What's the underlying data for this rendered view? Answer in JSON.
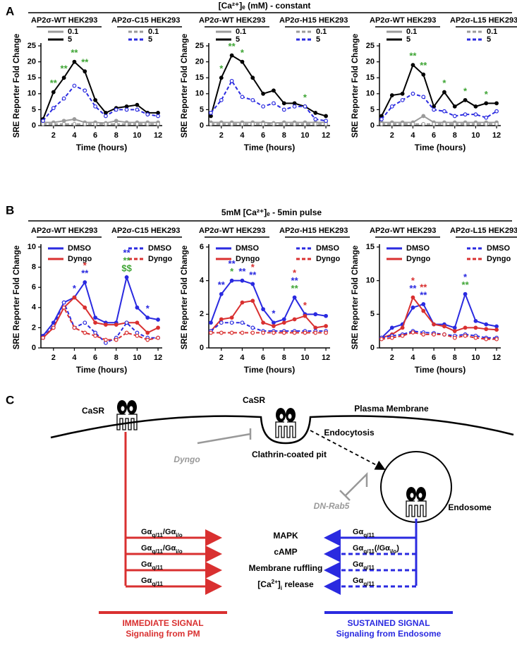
{
  "figure": {
    "panel_labels": [
      "A",
      "B",
      "C"
    ],
    "titles": [
      "[Ca²⁺]ₑ (mM) - constant",
      "5mM [Ca²⁺]ₑ - 5min pulse"
    ]
  },
  "chart_data": [
    {
      "type": "line",
      "xlabel": "Time (hours)",
      "ylabel": "SRE Reporter Fold Change",
      "groups": [
        "AP2σ-WT HEK293",
        "AP2σ-C15 HEK293"
      ],
      "x": [
        1,
        2,
        3,
        4,
        5,
        6,
        7,
        8,
        9,
        10,
        11,
        12
      ],
      "xlim": [
        0.8,
        12.4
      ],
      "xticks": [
        2,
        4,
        6,
        8,
        10,
        12
      ],
      "ylim": [
        0,
        25
      ],
      "yticks": [
        0,
        5,
        10,
        15,
        20,
        25
      ],
      "series": [
        {
          "name": "0.1",
          "group": 0,
          "color": "#9a9a9a",
          "dashed": false,
          "values": [
            1,
            1,
            1.5,
            2,
            1,
            1,
            0.8,
            1.5,
            1,
            1,
            1,
            1
          ]
        },
        {
          "name": "5",
          "group": 0,
          "color": "#000000",
          "dashed": false,
          "values": [
            2,
            10.5,
            15,
            20,
            17,
            8,
            4,
            5.5,
            6,
            6.5,
            4,
            4
          ]
        },
        {
          "name": "0.1",
          "group": 1,
          "color": "#9a9a9a",
          "dashed": true,
          "values": [
            0.5,
            0.5,
            0.5,
            0.5,
            0.5,
            0.5,
            0.5,
            0.5,
            0.5,
            0.5,
            0.5,
            0.5
          ]
        },
        {
          "name": "5",
          "group": 1,
          "color": "#2a2ae0",
          "dashed": true,
          "values": [
            1.5,
            5.5,
            8.5,
            12.5,
            11,
            6,
            3,
            5,
            5,
            5,
            3.5,
            3
          ]
        }
      ],
      "annotations": [
        {
          "x": 2,
          "text": "**",
          "color": "#3fa535"
        },
        {
          "x": 3,
          "text": "**",
          "color": "#3fa535"
        },
        {
          "x": 4,
          "text": "**",
          "color": "#3fa535"
        },
        {
          "x": 5,
          "text": "**",
          "color": "#3fa535"
        }
      ]
    },
    {
      "type": "line",
      "xlabel": "Time (hours)",
      "ylabel": "SRE Reporter Fold Change",
      "groups": [
        "AP2σ-WT HEK293",
        "AP2σ-H15 HEK293"
      ],
      "x": [
        1,
        2,
        3,
        4,
        5,
        6,
        7,
        8,
        9,
        10,
        11,
        12
      ],
      "xlim": [
        0.8,
        12.4
      ],
      "xticks": [
        2,
        4,
        6,
        8,
        10,
        12
      ],
      "ylim": [
        0,
        25
      ],
      "yticks": [
        0,
        5,
        10,
        15,
        20,
        25
      ],
      "series": [
        {
          "name": "0.1",
          "group": 0,
          "color": "#9a9a9a",
          "dashed": false,
          "values": [
            1,
            1,
            1,
            1,
            1,
            1,
            0.8,
            1,
            1,
            1,
            1,
            1
          ]
        },
        {
          "name": "5",
          "group": 0,
          "color": "#000000",
          "dashed": false,
          "values": [
            3,
            15,
            22,
            20,
            15,
            10,
            11,
            7,
            7,
            6,
            4,
            3
          ]
        },
        {
          "name": "0.1",
          "group": 1,
          "color": "#9a9a9a",
          "dashed": true,
          "values": [
            0.5,
            0.5,
            0.5,
            0.5,
            0.5,
            0.5,
            0.5,
            0.5,
            0.5,
            0.5,
            0.5,
            0.5
          ]
        },
        {
          "name": "5",
          "group": 1,
          "color": "#2a2ae0",
          "dashed": true,
          "values": [
            4,
            8,
            14,
            9,
            8,
            6,
            7,
            5,
            6,
            6,
            2,
            1.5
          ]
        }
      ],
      "annotations": [
        {
          "x": 2,
          "text": "*",
          "color": "#3fa535"
        },
        {
          "x": 3,
          "text": "**",
          "color": "#3fa535"
        },
        {
          "x": 4,
          "text": "*",
          "color": "#3fa535"
        },
        {
          "x": 10,
          "text": "*",
          "color": "#3fa535"
        }
      ]
    },
    {
      "type": "line",
      "xlabel": "Time (hours)",
      "ylabel": "SRE Reporter Fold Change",
      "groups": [
        "AP2σ-WT HEK293",
        "AP2σ-L15 HEK293"
      ],
      "x": [
        1,
        2,
        3,
        4,
        5,
        6,
        7,
        8,
        9,
        10,
        11,
        12
      ],
      "xlim": [
        0.8,
        12.4
      ],
      "xticks": [
        2,
        4,
        6,
        8,
        10,
        12
      ],
      "ylim": [
        0,
        25
      ],
      "yticks": [
        0,
        5,
        10,
        15,
        20,
        25
      ],
      "series": [
        {
          "name": "0.1",
          "group": 0,
          "color": "#9a9a9a",
          "dashed": false,
          "values": [
            1,
            1,
            1,
            1,
            3,
            1,
            1,
            1,
            1,
            1,
            1,
            1
          ]
        },
        {
          "name": "5",
          "group": 0,
          "color": "#000000",
          "dashed": false,
          "values": [
            3,
            9.5,
            10,
            19,
            16,
            6,
            10.5,
            6,
            8,
            6,
            7,
            7
          ]
        },
        {
          "name": "0.1",
          "group": 1,
          "color": "#9a9a9a",
          "dashed": true,
          "values": [
            0.5,
            0.5,
            0.5,
            0.5,
            0.5,
            0.5,
            0.5,
            0.5,
            0.5,
            0.5,
            0.5,
            0.5
          ]
        },
        {
          "name": "5",
          "group": 1,
          "color": "#2a2ae0",
          "dashed": true,
          "values": [
            2,
            6,
            8,
            10,
            9,
            5,
            4.5,
            3,
            3.5,
            3.5,
            2.5,
            4.5
          ]
        }
      ],
      "annotations": [
        {
          "x": 4,
          "text": "**",
          "color": "#3fa535"
        },
        {
          "x": 5,
          "text": "**",
          "color": "#3fa535"
        },
        {
          "x": 7,
          "text": "*",
          "color": "#3fa535"
        },
        {
          "x": 9,
          "text": "*",
          "color": "#3fa535"
        },
        {
          "x": 11,
          "text": "*",
          "color": "#3fa535"
        }
      ]
    },
    {
      "type": "line",
      "xlabel": "Time (hours)",
      "ylabel": "SRE Reporter Fold Change",
      "groups": [
        "AP2σ-WT HEK293",
        "AP2σ-C15 HEK293"
      ],
      "x": [
        1,
        2,
        3,
        4,
        5,
        6,
        7,
        8,
        9,
        10,
        11,
        12
      ],
      "xlim": [
        0.8,
        12.4
      ],
      "xticks": [
        2,
        4,
        6,
        8,
        10,
        12
      ],
      "ylim": [
        0,
        10
      ],
      "yticks": [
        0,
        2,
        4,
        6,
        8,
        10
      ],
      "series": [
        {
          "name": "DMSO",
          "group": 0,
          "color": "#2a2ae0",
          "dashed": false,
          "values": [
            1.2,
            2.5,
            4.5,
            5,
            6.5,
            3,
            2.5,
            2.5,
            7,
            4,
            3,
            2.8
          ]
        },
        {
          "name": "Dyngo",
          "group": 0,
          "color": "#d93030",
          "dashed": false,
          "values": [
            1,
            2,
            4,
            5,
            4,
            2.5,
            2.3,
            2.3,
            2.5,
            2.5,
            1.5,
            2
          ]
        },
        {
          "name": "DMSO",
          "group": 1,
          "color": "#2a2ae0",
          "dashed": true,
          "values": [
            1,
            2.2,
            4.5,
            2,
            2.5,
            1.5,
            0.5,
            1,
            2.5,
            1.5,
            1,
            1
          ]
        },
        {
          "name": "Dyngo",
          "group": 1,
          "color": "#d93030",
          "dashed": true,
          "values": [
            1,
            2,
            4,
            2,
            1.5,
            1.2,
            0.8,
            0.8,
            1.5,
            1.2,
            0.8,
            1
          ]
        }
      ],
      "annotations": [
        {
          "x": 4,
          "text": "*",
          "color": "#2a2ae0"
        },
        {
          "x": 5,
          "text": "**",
          "color": "#2a2ae0"
        },
        {
          "x": 5,
          "text": "*",
          "color": "#d93030"
        },
        {
          "x": 9,
          "text": "$$",
          "color": "#3fa535"
        },
        {
          "x": 9,
          "text": "**",
          "color": "#3fa535"
        },
        {
          "x": 9,
          "text": "**",
          "color": "#2a2ae0"
        },
        {
          "x": 11,
          "text": "*",
          "color": "#2a2ae0"
        }
      ]
    },
    {
      "type": "line",
      "xlabel": "Time (hours)",
      "ylabel": "SRE Reporter Fold Change",
      "groups": [
        "AP2σ-WT HEK293",
        "AP2σ-H15 HEK293"
      ],
      "x": [
        1,
        2,
        3,
        4,
        5,
        6,
        7,
        8,
        9,
        10,
        11,
        12
      ],
      "xlim": [
        0.8,
        12.4
      ],
      "xticks": [
        2,
        4,
        6,
        8,
        10,
        12
      ],
      "ylim": [
        0,
        6
      ],
      "yticks": [
        0,
        2,
        4,
        6
      ],
      "series": [
        {
          "name": "DMSO",
          "group": 0,
          "color": "#2a2ae0",
          "dashed": false,
          "values": [
            1.5,
            3.2,
            4,
            4,
            3.8,
            2.3,
            1.5,
            1.7,
            3,
            2,
            2,
            1.9
          ]
        },
        {
          "name": "Dyngo",
          "group": 0,
          "color": "#d93030",
          "dashed": false,
          "values": [
            1,
            1.7,
            1.8,
            2.7,
            2.8,
            1.5,
            1.3,
            1.5,
            1.7,
            1.9,
            1.2,
            1.3
          ]
        },
        {
          "name": "DMSO",
          "group": 1,
          "color": "#2a2ae0",
          "dashed": true,
          "values": [
            1,
            1.5,
            1.5,
            1.5,
            1.2,
            1,
            1,
            1,
            1,
            1,
            1,
            1
          ]
        },
        {
          "name": "Dyngo",
          "group": 1,
          "color": "#d93030",
          "dashed": true,
          "values": [
            0.9,
            0.9,
            0.9,
            0.9,
            0.9,
            0.9,
            0.9,
            0.9,
            0.9,
            0.9,
            0.9,
            0.9
          ]
        }
      ],
      "annotations": [
        {
          "x": 2,
          "text": "**",
          "color": "#2a2ae0"
        },
        {
          "x": 3,
          "text": "*",
          "color": "#3fa535"
        },
        {
          "x": 3,
          "text": "**",
          "color": "#2a2ae0"
        },
        {
          "x": 4,
          "text": "**",
          "color": "#2a2ae0"
        },
        {
          "x": 5,
          "text": "**",
          "color": "#2a2ae0"
        },
        {
          "x": 5,
          "text": "*",
          "color": "#d93030"
        },
        {
          "x": 7,
          "text": "*",
          "color": "#2a2ae0"
        },
        {
          "x": 9,
          "text": "**",
          "color": "#3fa535"
        },
        {
          "x": 9,
          "text": "**",
          "color": "#2a2ae0"
        },
        {
          "x": 9,
          "text": "*",
          "color": "#d93030"
        },
        {
          "x": 10,
          "text": "*",
          "color": "#d93030"
        }
      ]
    },
    {
      "type": "line",
      "xlabel": "Time (hours)",
      "ylabel": "SRE Reporter Fold Change",
      "groups": [
        "AP2σ-WT HEK293",
        "AP2σ-L15 HEK293"
      ],
      "x": [
        1,
        2,
        3,
        4,
        5,
        6,
        7,
        8,
        9,
        10,
        11,
        12
      ],
      "xlim": [
        0.8,
        12.4
      ],
      "xticks": [
        2,
        4,
        6,
        8,
        10,
        12
      ],
      "ylim": [
        0,
        15
      ],
      "yticks": [
        0,
        5,
        10,
        15
      ],
      "series": [
        {
          "name": "DMSO",
          "group": 0,
          "color": "#2a2ae0",
          "dashed": false,
          "values": [
            1.5,
            3,
            3.5,
            6,
            6.5,
            3.5,
            3.5,
            3,
            8,
            4,
            3.5,
            3.2
          ]
        },
        {
          "name": "Dyngo",
          "group": 0,
          "color": "#d93030",
          "dashed": false,
          "values": [
            1.5,
            2,
            3,
            7.5,
            5.5,
            3.5,
            3.2,
            2.5,
            3,
            3,
            2.8,
            2.7
          ]
        },
        {
          "name": "DMSO",
          "group": 1,
          "color": "#2a2ae0",
          "dashed": true,
          "values": [
            1.5,
            1.8,
            2,
            2.5,
            2.3,
            2.2,
            2,
            1.8,
            2,
            1.8,
            1.5,
            1.5
          ]
        },
        {
          "name": "Dyngo",
          "group": 1,
          "color": "#d93030",
          "dashed": true,
          "values": [
            1.3,
            1.5,
            1.8,
            2.3,
            2,
            2,
            2,
            1.5,
            1.8,
            1.5,
            1.3,
            1.3
          ]
        }
      ],
      "annotations": [
        {
          "x": 4,
          "text": "**",
          "color": "#2a2ae0"
        },
        {
          "x": 4,
          "text": "*",
          "color": "#d93030"
        },
        {
          "x": 5,
          "text": "**",
          "color": "#2a2ae0"
        },
        {
          "x": 5,
          "text": "**",
          "color": "#d93030"
        },
        {
          "x": 9,
          "text": "**",
          "color": "#3fa535"
        },
        {
          "x": 9,
          "text": "*",
          "color": "#2a2ae0"
        }
      ]
    }
  ],
  "diagram": {
    "receptors": [
      "CaSR",
      "CaSR"
    ],
    "membrane": "Plasma Membrane",
    "endocytosis": "Endocytosis",
    "inhibitor_pit": "Dyngo",
    "pit": "Clathrin-coated pit",
    "inhibitor_endosome": "DN-Rab5",
    "endosome": "Endosome",
    "readouts": [
      [
        {
          "t": "MAPK"
        }
      ],
      [
        {
          "t": "cAMP"
        }
      ],
      [
        {
          "t": "Membrane ruffling"
        }
      ],
      [
        {
          "t": "[Ca"
        },
        {
          "t": "2+",
          "shift": "super"
        },
        {
          "t": "]"
        },
        {
          "t": "i",
          "shift": "sub"
        },
        {
          "t": " release"
        }
      ]
    ],
    "left_labels": [
      [
        {
          "t": "Gα"
        },
        {
          "t": "q/11",
          "shift": "sub"
        },
        {
          "t": "/Gα"
        },
        {
          "t": "i/o",
          "shift": "sub"
        }
      ],
      [
        {
          "t": "Gα"
        },
        {
          "t": "q/11",
          "shift": "sub"
        },
        {
          "t": "/Gα"
        },
        {
          "t": "i/o",
          "shift": "sub"
        }
      ],
      [
        {
          "t": "Gα"
        },
        {
          "t": "q/11",
          "shift": "sub"
        }
      ],
      [
        {
          "t": "Gα"
        },
        {
          "t": "q/11",
          "shift": "sub"
        }
      ]
    ],
    "right_labels": [
      [
        {
          "t": "Gα"
        },
        {
          "t": "q/11",
          "shift": "sub"
        }
      ],
      [
        {
          "t": "Gα"
        },
        {
          "t": "q/11",
          "shift": "sub"
        },
        {
          "t": "(/Gα"
        },
        {
          "t": "i/o",
          "shift": "sub"
        },
        {
          "t": ")"
        }
      ],
      [
        {
          "t": "Gα"
        },
        {
          "t": "q/11",
          "shift": "sub"
        }
      ],
      [
        {
          "t": "Gα"
        },
        {
          "t": "q/11",
          "shift": "sub"
        }
      ]
    ],
    "immediate": {
      "title": "IMMEDIATE SIGNAL",
      "subtitle": "Signaling from PM"
    },
    "sustained": {
      "title": "SUSTAINED SIGNAL",
      "subtitle": "Signaling from Endosome"
    }
  }
}
